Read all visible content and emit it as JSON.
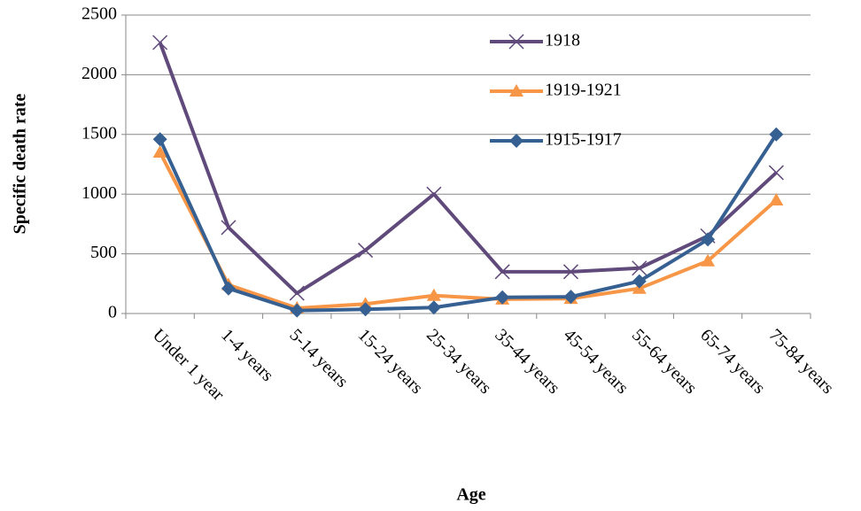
{
  "chart_data": {
    "type": "line",
    "x_label": "Age",
    "y_label": "Specific death rate",
    "categories": [
      "Under 1 year",
      "1-4 years",
      "5-14 years",
      "15-24 years",
      "25-34 years",
      "35-44 years",
      "45-54 years",
      "55-64 years",
      "65-74 years",
      "75-84 years"
    ],
    "series": [
      {
        "name": "1918",
        "color": "#604a7b",
        "marker": "x",
        "values": [
          2270,
          720,
          170,
          530,
          1000,
          350,
          350,
          380,
          650,
          1180
        ]
      },
      {
        "name": "1919-1921",
        "color": "#f79646",
        "marker": "triangle",
        "values": [
          1350,
          240,
          45,
          80,
          150,
          120,
          125,
          210,
          440,
          950
        ]
      },
      {
        "name": "1915-1917",
        "color": "#376092",
        "marker": "diamond",
        "values": [
          1460,
          210,
          25,
          35,
          50,
          135,
          140,
          270,
          620,
          1500
        ]
      }
    ],
    "ylim": [
      0,
      2500
    ],
    "yticks": [
      0,
      500,
      1000,
      1500,
      2000,
      2500
    ],
    "grid": true,
    "legend": "upper right"
  }
}
